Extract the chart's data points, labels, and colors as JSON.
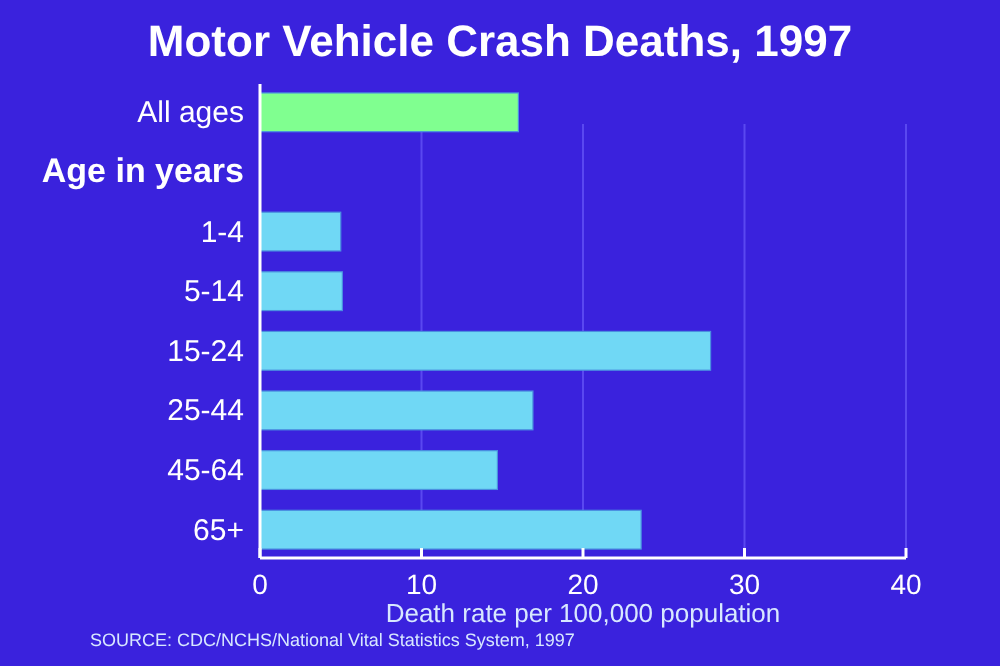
{
  "chart_data": {
    "type": "bar",
    "orientation": "horizontal",
    "title": "Motor Vehicle Crash Deaths, 1997",
    "categories": [
      "All ages",
      "Age in years",
      "1-4",
      "5-14",
      "15-24",
      "25-44",
      "45-64",
      "65+"
    ],
    "values": [
      16.0,
      null,
      5.0,
      5.1,
      27.9,
      16.9,
      14.7,
      23.6
    ],
    "colors": [
      "#80ff90",
      null,
      "#70d8f5",
      "#70d8f5",
      "#70d8f5",
      "#70d8f5",
      "#70d8f5",
      "#70d8f5"
    ],
    "xlabel": "Death rate per 100,000 population",
    "xlim": [
      0,
      40
    ],
    "xticks": [
      0,
      10,
      20,
      30,
      40
    ],
    "grid": "x",
    "annotations": [
      "SOURCE: CDC/NCHS/National Vital Statistics System, 1997"
    ]
  }
}
